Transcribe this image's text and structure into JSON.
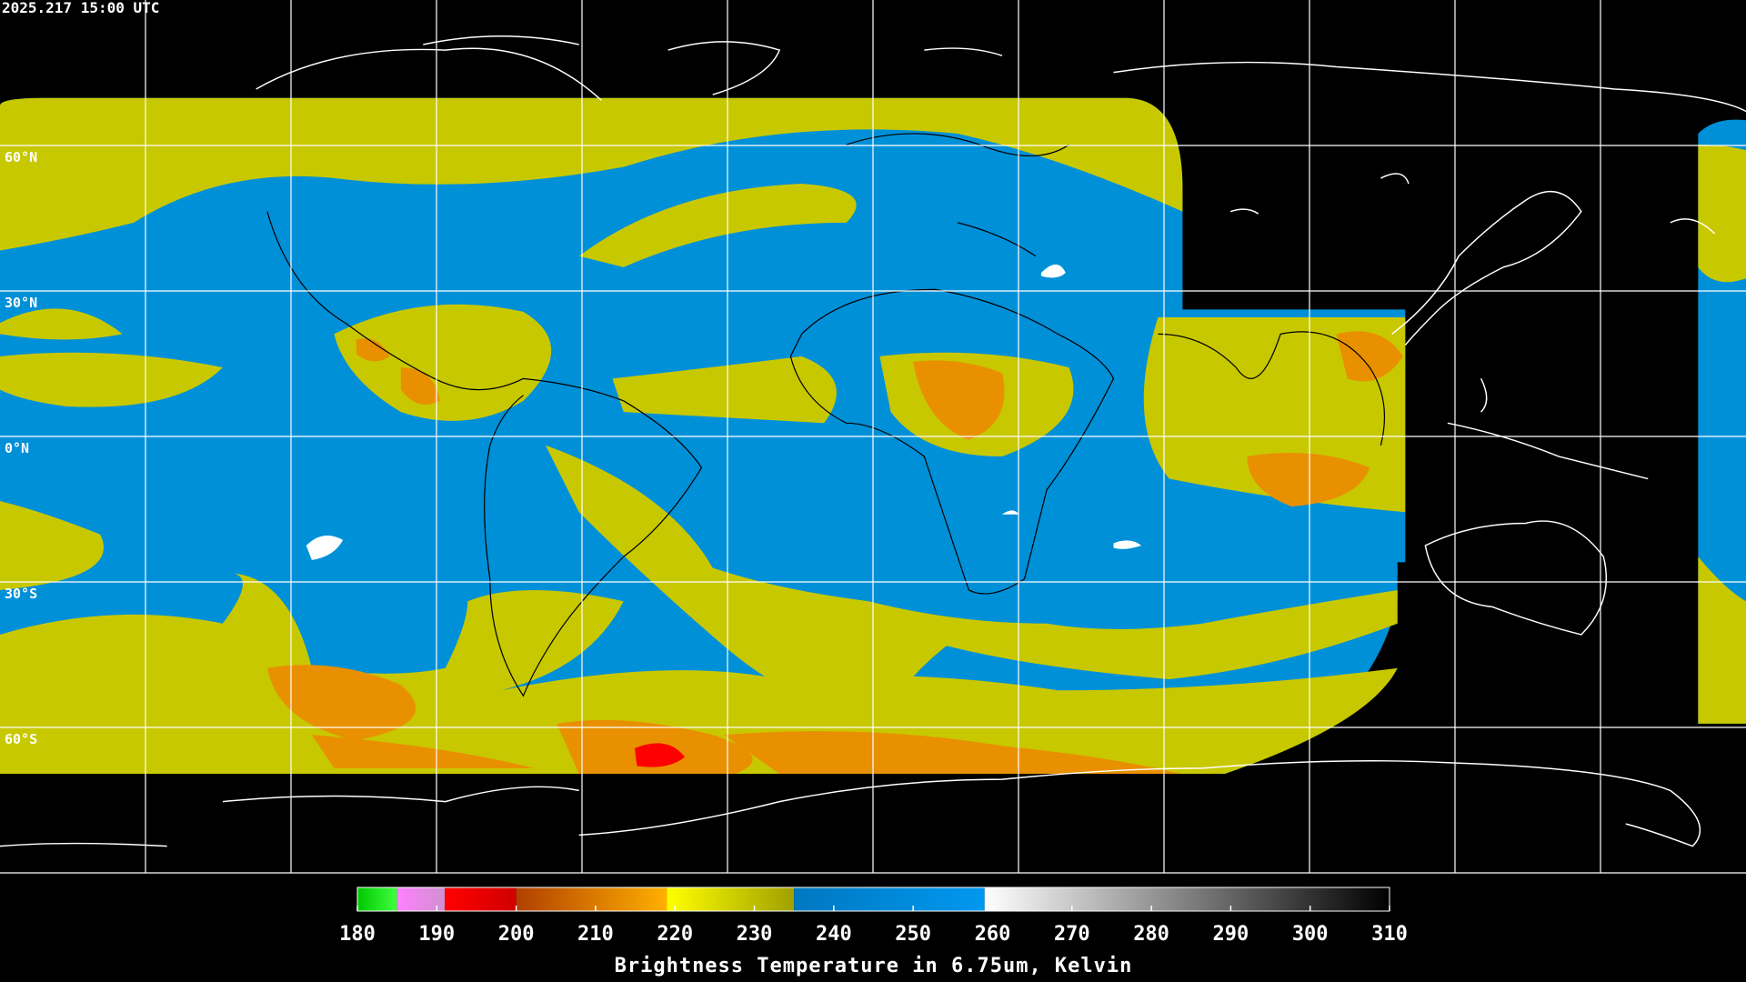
{
  "header": {
    "timestamp": "2025.217 15:00 UTC"
  },
  "map": {
    "lat_lines": [
      {
        "value": 60,
        "label": "60°N"
      },
      {
        "value": 30,
        "label": "30°N"
      },
      {
        "value": 0,
        "label": "0°N"
      },
      {
        "value": -30,
        "label": "30°S"
      },
      {
        "value": -60,
        "label": "60°S"
      }
    ]
  },
  "colorbar": {
    "title": "Brightness Temperature in 6.75um, Kelvin",
    "lim": [
      180,
      310
    ],
    "ticks": [
      180,
      190,
      200,
      210,
      220,
      230,
      240,
      250,
      260,
      270,
      280,
      290,
      300,
      310
    ],
    "segments": [
      {
        "from": 180,
        "to": 185,
        "colors": [
          "#00c800",
          "#40ff40"
        ]
      },
      {
        "from": 185,
        "to": 191,
        "colors": [
          "#ff80ff",
          "#d090d0"
        ]
      },
      {
        "from": 191,
        "to": 200,
        "colors": [
          "#ff0000",
          "#d00000"
        ]
      },
      {
        "from": 200,
        "to": 219,
        "colors": [
          "#b04000",
          "#ffb000"
        ]
      },
      {
        "from": 219,
        "to": 235,
        "colors": [
          "#ffff00",
          "#a0a000"
        ]
      },
      {
        "from": 235,
        "to": 259,
        "colors": [
          "#0078c0",
          "#0098f0"
        ]
      },
      {
        "from": 259,
        "to": 310,
        "colors": [
          "#ffffff",
          "#000000"
        ]
      }
    ]
  }
}
